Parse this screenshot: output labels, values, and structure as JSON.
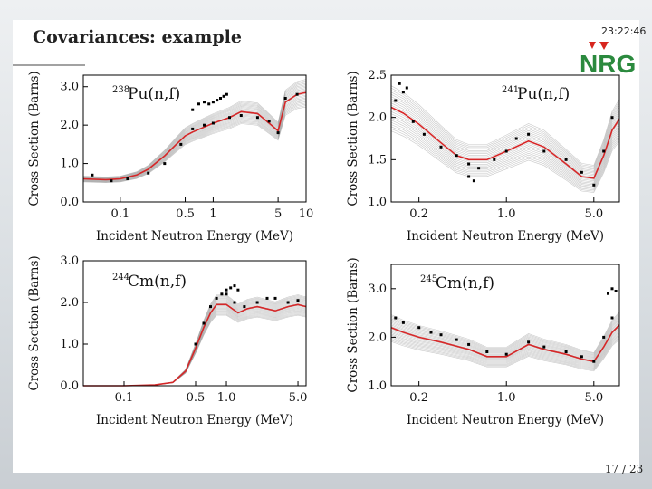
{
  "slide": {
    "title": "Covariances: example",
    "clock": "23:22:46",
    "page_number": "17 / 23",
    "logo_text": "NRG",
    "colors": {
      "logo_green": "#2b8a3e",
      "logo_red": "#d7261e",
      "mean_line": "#d62728",
      "band": "#9a9a9a",
      "points": "#000000"
    }
  },
  "chart_data": [
    {
      "type": "line",
      "id": "pu238",
      "label_prefix": "238",
      "label_main": "Pu(n,f)",
      "xlabel": "Incident Neutron Energy (MeV)",
      "ylabel": "Cross Section (Barns)",
      "xscale": "log",
      "xlim": [
        0.04,
        10
      ],
      "ylim": [
        0,
        3.3
      ],
      "xticks": [
        0.1,
        0.5,
        1,
        5,
        10
      ],
      "xtick_labels": [
        "0.1",
        "0.5",
        "1",
        "5",
        "10"
      ],
      "yticks": [
        0,
        1,
        2,
        3
      ],
      "ytick_labels": [
        "0.0",
        "1.0",
        "2.0",
        "3.0"
      ],
      "series": [
        {
          "x": [
            0.04,
            0.07,
            0.1,
            0.15,
            0.2,
            0.3,
            0.4,
            0.5,
            0.6,
            0.8,
            1,
            1.5,
            2,
            3,
            4,
            5,
            6,
            8,
            10
          ],
          "y": [
            0.6,
            0.58,
            0.6,
            0.7,
            0.85,
            1.2,
            1.5,
            1.72,
            1.82,
            1.95,
            2.05,
            2.2,
            2.35,
            2.3,
            2.05,
            1.85,
            2.6,
            2.8,
            2.85
          ]
        }
      ],
      "points_a": {
        "x": [
          0.05,
          0.08,
          0.12,
          0.2,
          0.3,
          0.45,
          0.6,
          0.8,
          1,
          1.5,
          2,
          3,
          4,
          5,
          6,
          8
        ],
        "y": [
          0.7,
          0.55,
          0.6,
          0.75,
          1.0,
          1.5,
          1.9,
          2.0,
          2.05,
          2.2,
          2.25,
          2.2,
          2.1,
          1.8,
          2.7,
          2.8
        ]
      },
      "points_b": {
        "x": [
          0.6,
          0.7,
          0.8,
          0.9,
          1,
          1.1,
          1.2,
          1.3,
          1.4
        ],
        "y": [
          2.4,
          2.55,
          2.6,
          2.55,
          2.6,
          2.65,
          2.7,
          2.75,
          2.8
        ]
      }
    },
    {
      "type": "line",
      "id": "pu241",
      "label_prefix": "241",
      "label_main": "Pu(n,f)",
      "xlabel": "Incident Neutron Energy (MeV)",
      "ylabel": "Cross Section (Barns)",
      "xscale": "log",
      "xlim": [
        0.12,
        8
      ],
      "ylim": [
        1.0,
        2.5
      ],
      "xticks": [
        0.2,
        1,
        5
      ],
      "xtick_labels": [
        "0.2",
        "1.0",
        "5.0"
      ],
      "yticks": [
        1.0,
        1.5,
        2.0,
        2.5
      ],
      "ytick_labels": [
        "1.0",
        "1.5",
        "2.0",
        "2.5"
      ],
      "series": [
        {
          "x": [
            0.12,
            0.15,
            0.2,
            0.3,
            0.4,
            0.5,
            0.7,
            1,
            1.5,
            2,
            3,
            4,
            5,
            6,
            7,
            8
          ],
          "y": [
            2.12,
            2.05,
            1.92,
            1.7,
            1.55,
            1.5,
            1.5,
            1.6,
            1.72,
            1.65,
            1.45,
            1.3,
            1.28,
            1.55,
            1.85,
            1.98
          ]
        }
      ],
      "points_a": {
        "x": [
          0.13,
          0.15,
          0.18,
          0.22,
          0.3,
          0.4,
          0.5,
          0.6,
          0.8,
          1,
          1.2,
          1.5,
          2,
          3,
          4,
          5,
          6,
          7
        ],
        "y": [
          2.2,
          2.3,
          1.95,
          1.8,
          1.65,
          1.55,
          1.45,
          1.4,
          1.5,
          1.6,
          1.75,
          1.8,
          1.6,
          1.5,
          1.35,
          1.2,
          1.6,
          2.0
        ]
      },
      "points_b": {
        "x": [
          0.14,
          0.16,
          0.5,
          0.55
        ],
        "y": [
          2.4,
          2.35,
          1.3,
          1.25
        ]
      }
    },
    {
      "type": "line",
      "id": "cm244",
      "label_prefix": "244",
      "label_main": "Cm(n,f)",
      "xlabel": "Incident Neutron Energy (MeV)",
      "ylabel": "Cross Section (Barns)",
      "xscale": "log",
      "xlim": [
        0.04,
        6
      ],
      "ylim": [
        0,
        3.0
      ],
      "xticks": [
        0.1,
        0.5,
        1,
        5
      ],
      "xtick_labels": [
        "0.1",
        "0.5",
        "1.0",
        "5.0"
      ],
      "yticks": [
        0,
        1,
        2,
        3
      ],
      "ytick_labels": [
        "0.0",
        "1.0",
        "2.0",
        "3.0"
      ],
      "series": [
        {
          "x": [
            0.04,
            0.1,
            0.2,
            0.3,
            0.4,
            0.5,
            0.6,
            0.7,
            0.8,
            1,
            1.3,
            1.6,
            2,
            3,
            4,
            5,
            6
          ],
          "y": [
            0.0,
            0.0,
            0.02,
            0.08,
            0.35,
            0.9,
            1.4,
            1.75,
            1.95,
            1.95,
            1.75,
            1.85,
            1.9,
            1.8,
            1.9,
            1.95,
            1.9
          ]
        }
      ],
      "points_a": {
        "x": [
          0.5,
          0.6,
          0.7,
          0.8,
          0.9,
          1,
          1.2,
          1.5,
          2,
          2.5,
          3,
          4,
          5
        ],
        "y": [
          1.0,
          1.5,
          1.9,
          2.1,
          2.2,
          2.2,
          2.0,
          1.9,
          2.0,
          2.1,
          2.1,
          2.0,
          2.05
        ]
      },
      "points_b": {
        "x": [
          1.0,
          1.1,
          1.2,
          1.3
        ],
        "y": [
          2.3,
          2.35,
          2.4,
          2.3
        ]
      }
    },
    {
      "type": "line",
      "id": "cm245",
      "label_prefix": "245",
      "label_main": "Cm(n,f)",
      "xlabel": "Incident Neutron Energy (MeV)",
      "ylabel": "Cross Section (Barns)",
      "xscale": "log",
      "xlim": [
        0.12,
        8
      ],
      "ylim": [
        1.0,
        3.5
      ],
      "xticks": [
        0.2,
        1,
        5
      ],
      "xtick_labels": [
        "0.2",
        "1.0",
        "5.0"
      ],
      "yticks": [
        1.0,
        2.0,
        3.0
      ],
      "ytick_labels": [
        "1.0",
        "2.0",
        "3.0"
      ],
      "series": [
        {
          "x": [
            0.12,
            0.15,
            0.2,
            0.3,
            0.5,
            0.7,
            1,
            1.5,
            2,
            3,
            4,
            5,
            6,
            7,
            8
          ],
          "y": [
            2.2,
            2.1,
            2.0,
            1.9,
            1.75,
            1.6,
            1.6,
            1.85,
            1.75,
            1.65,
            1.55,
            1.5,
            1.8,
            2.1,
            2.25
          ]
        }
      ],
      "points_a": {
        "x": [
          0.13,
          0.15,
          0.2,
          0.25,
          0.3,
          0.4,
          0.5,
          0.7,
          1,
          1.5,
          2,
          3,
          4,
          5,
          6,
          7
        ],
        "y": [
          2.4,
          2.3,
          2.2,
          2.1,
          2.05,
          1.95,
          1.85,
          1.7,
          1.65,
          1.9,
          1.8,
          1.7,
          1.6,
          1.5,
          2.0,
          2.4
        ]
      },
      "points_b": {
        "x": [
          6.5,
          7,
          7.5
        ],
        "y": [
          2.9,
          3.0,
          2.95
        ]
      }
    }
  ]
}
